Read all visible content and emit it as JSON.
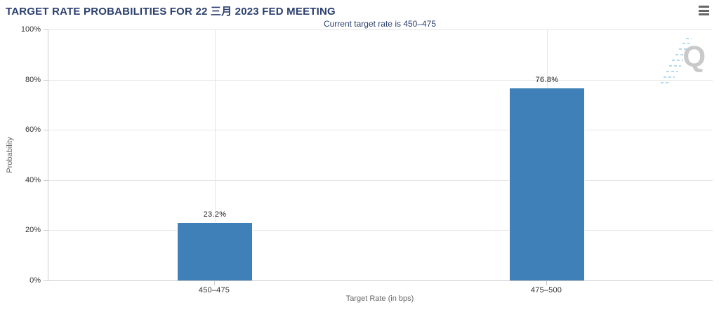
{
  "chart_data": {
    "type": "bar",
    "title": "TARGET RATE PROBABILITIES FOR 22 三月 2023 FED MEETING",
    "subtitle": "Current target rate is 450–475",
    "categories": [
      "450–475",
      "475–500"
    ],
    "values": [
      23.2,
      76.8
    ],
    "value_labels": [
      "23.2%",
      "76.8%"
    ],
    "xlabel": "Target Rate (in bps)",
    "ylabel": "Probability",
    "ylim": [
      0,
      100
    ],
    "ytick_step": 20,
    "ytick_labels": [
      "0%",
      "20%",
      "40%",
      "60%",
      "80%",
      "100%"
    ],
    "grid": true,
    "legend": false
  },
  "branding": {
    "watermark_letter": "Q"
  },
  "colors": {
    "bar": "#4080b8",
    "bar_border": "#ffffff",
    "title": "#2b3f6e",
    "subtitle": "#2b3f6e",
    "axis_label": "#333333",
    "axis_title": "#666666",
    "gridline": "#e6e6e6",
    "axis_line": "#cccccc",
    "data_label": "#222222",
    "watermark": "#c9c9c9",
    "watermark_dashes": "#b5d9ec",
    "menu_icon": "#666666"
  }
}
